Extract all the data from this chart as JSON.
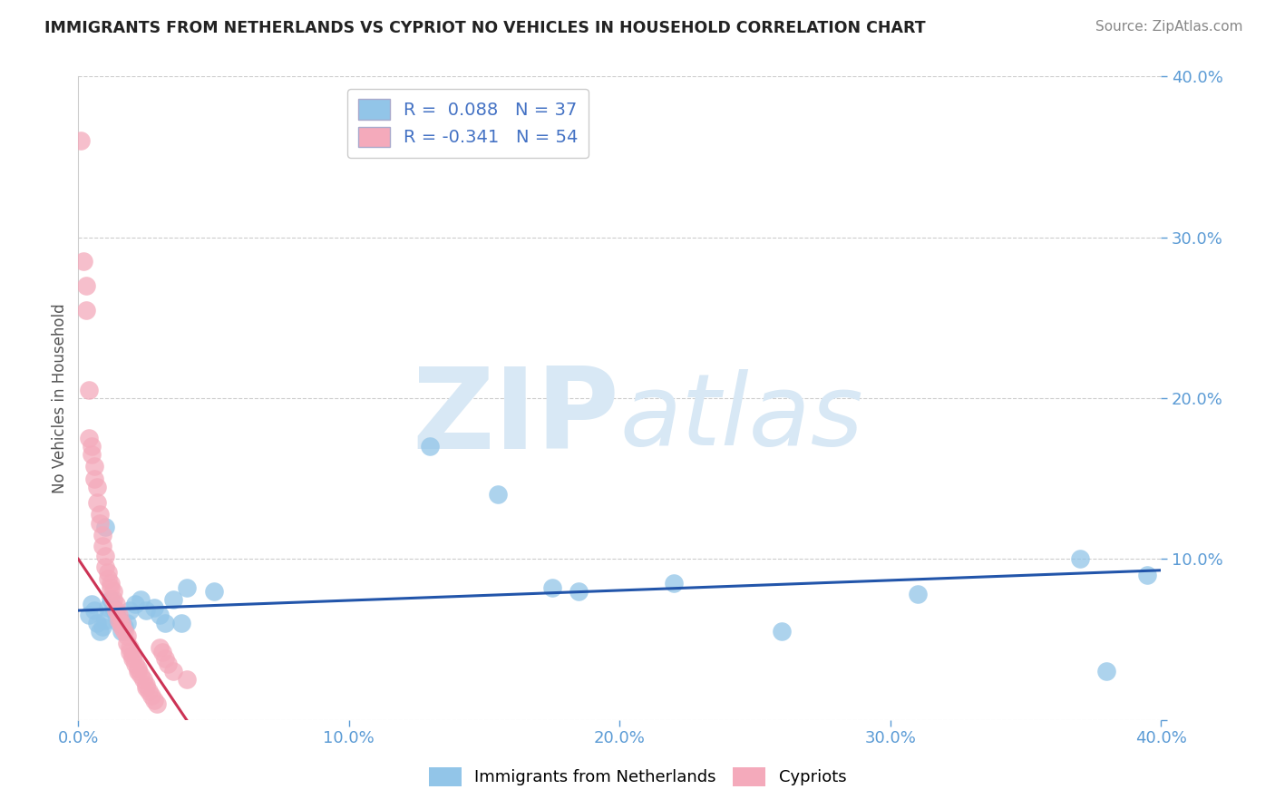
{
  "title": "IMMIGRANTS FROM NETHERLANDS VS CYPRIOT NO VEHICLES IN HOUSEHOLD CORRELATION CHART",
  "source": "Source: ZipAtlas.com",
  "ylabel": "No Vehicles in Household",
  "legend_label1": "Immigrants from Netherlands",
  "legend_label2": "Cypriots",
  "R1": 0.088,
  "N1": 37,
  "R2": -0.341,
  "N2": 54,
  "xlim": [
    0.0,
    0.4
  ],
  "ylim": [
    0.0,
    0.4
  ],
  "color_blue": "#92C5E8",
  "color_pink": "#F4AABB",
  "color_blue_line": "#2255AA",
  "color_pink_line": "#CC3355",
  "watermark_color": "#D8E8F5",
  "background_color": "#FFFFFF",
  "blue_x": [
    0.004,
    0.005,
    0.006,
    0.007,
    0.008,
    0.009,
    0.01,
    0.011,
    0.012,
    0.013,
    0.014,
    0.015,
    0.016,
    0.017,
    0.018,
    0.019,
    0.021,
    0.023,
    0.025,
    0.028,
    0.03,
    0.032,
    0.035,
    0.038,
    0.04,
    0.05,
    0.13,
    0.155,
    0.175,
    0.185,
    0.22,
    0.26,
    0.31,
    0.37,
    0.395,
    0.38,
    0.01
  ],
  "blue_y": [
    0.065,
    0.072,
    0.068,
    0.06,
    0.055,
    0.058,
    0.062,
    0.07,
    0.075,
    0.07,
    0.065,
    0.06,
    0.055,
    0.058,
    0.06,
    0.068,
    0.072,
    0.075,
    0.068,
    0.07,
    0.065,
    0.06,
    0.075,
    0.06,
    0.082,
    0.08,
    0.17,
    0.14,
    0.082,
    0.08,
    0.085,
    0.055,
    0.078,
    0.1,
    0.09,
    0.03,
    0.12
  ],
  "pink_x": [
    0.001,
    0.002,
    0.003,
    0.003,
    0.004,
    0.004,
    0.005,
    0.005,
    0.006,
    0.006,
    0.007,
    0.007,
    0.008,
    0.008,
    0.009,
    0.009,
    0.01,
    0.01,
    0.011,
    0.011,
    0.012,
    0.012,
    0.013,
    0.013,
    0.014,
    0.014,
    0.015,
    0.015,
    0.016,
    0.016,
    0.017,
    0.018,
    0.018,
    0.019,
    0.019,
    0.02,
    0.02,
    0.021,
    0.022,
    0.022,
    0.023,
    0.024,
    0.025,
    0.025,
    0.026,
    0.027,
    0.028,
    0.029,
    0.03,
    0.031,
    0.032,
    0.033,
    0.035,
    0.04
  ],
  "pink_y": [
    0.36,
    0.285,
    0.27,
    0.255,
    0.205,
    0.175,
    0.17,
    0.165,
    0.158,
    0.15,
    0.145,
    0.135,
    0.128,
    0.122,
    0.115,
    0.108,
    0.102,
    0.095,
    0.092,
    0.088,
    0.085,
    0.082,
    0.08,
    0.075,
    0.072,
    0.068,
    0.065,
    0.062,
    0.06,
    0.058,
    0.055,
    0.052,
    0.048,
    0.045,
    0.042,
    0.04,
    0.038,
    0.035,
    0.032,
    0.03,
    0.028,
    0.025,
    0.022,
    0.02,
    0.018,
    0.015,
    0.012,
    0.01,
    0.045,
    0.042,
    0.038,
    0.035,
    0.03,
    0.025
  ],
  "blue_line_x": [
    0.0,
    0.4
  ],
  "blue_line_y": [
    0.068,
    0.093
  ],
  "pink_line_x": [
    0.0,
    0.04
  ],
  "pink_line_y": [
    0.1,
    0.0
  ]
}
